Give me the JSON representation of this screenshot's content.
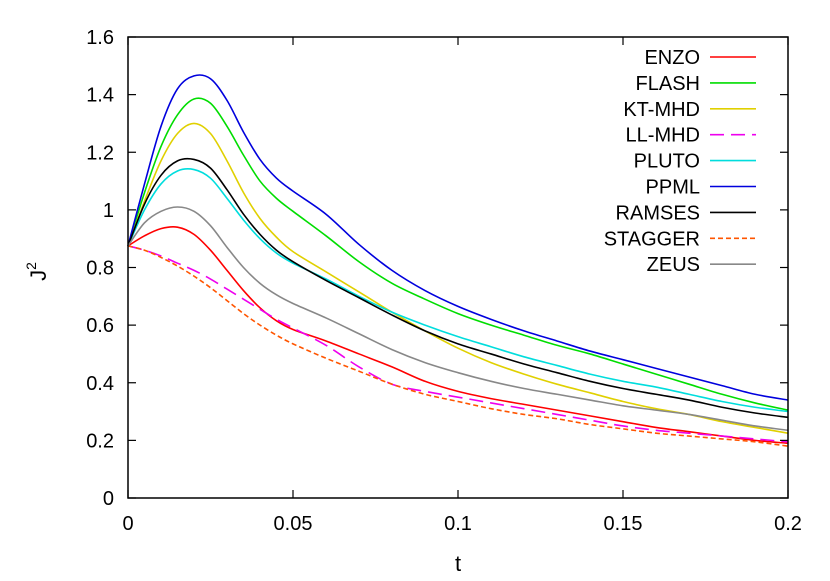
{
  "chart_data": {
    "type": "line",
    "xlabel": "t",
    "ylabel": "J",
    "ylabel_superscript": "2",
    "xlim": [
      0,
      0.2
    ],
    "ylim": [
      0,
      1.6
    ],
    "x_ticks": [
      "0",
      "0.05",
      "0.1",
      "0.15",
      "0.2"
    ],
    "y_ticks": [
      "0",
      "0.2",
      "0.4",
      "0.6",
      "0.8",
      "1",
      "1.2",
      "1.4",
      "1.6"
    ],
    "grid": false,
    "legend_position": "top-right",
    "series": [
      {
        "name": "ENZO",
        "color": "#ff0000",
        "dash": "solid",
        "x": [
          0,
          0.005,
          0.01,
          0.015,
          0.02,
          0.025,
          0.03,
          0.035,
          0.04,
          0.045,
          0.05,
          0.06,
          0.07,
          0.08,
          0.09,
          0.1,
          0.11,
          0.12,
          0.13,
          0.14,
          0.15,
          0.16,
          0.17,
          0.18,
          0.19,
          0.2
        ],
        "y": [
          0.875,
          0.91,
          0.935,
          0.94,
          0.915,
          0.86,
          0.79,
          0.72,
          0.66,
          0.615,
          0.585,
          0.545,
          0.5,
          0.455,
          0.405,
          0.37,
          0.345,
          0.325,
          0.305,
          0.285,
          0.265,
          0.245,
          0.23,
          0.215,
          0.2,
          0.19
        ]
      },
      {
        "name": "FLASH",
        "color": "#00dd00",
        "dash": "solid",
        "x": [
          0,
          0.005,
          0.01,
          0.015,
          0.02,
          0.025,
          0.03,
          0.035,
          0.04,
          0.045,
          0.05,
          0.06,
          0.07,
          0.08,
          0.09,
          0.1,
          0.11,
          0.12,
          0.13,
          0.14,
          0.15,
          0.16,
          0.17,
          0.18,
          0.19,
          0.2
        ],
        "y": [
          0.875,
          1.06,
          1.22,
          1.33,
          1.385,
          1.37,
          1.29,
          1.19,
          1.1,
          1.04,
          0.995,
          0.91,
          0.82,
          0.745,
          0.69,
          0.64,
          0.6,
          0.565,
          0.53,
          0.5,
          0.465,
          0.43,
          0.395,
          0.36,
          0.33,
          0.305
        ]
      },
      {
        "name": "KT-MHD",
        "color": "#e0d000",
        "dash": "solid",
        "x": [
          0,
          0.005,
          0.01,
          0.015,
          0.02,
          0.025,
          0.03,
          0.035,
          0.04,
          0.045,
          0.05,
          0.06,
          0.07,
          0.08,
          0.09,
          0.1,
          0.11,
          0.12,
          0.13,
          0.14,
          0.15,
          0.16,
          0.17,
          0.18,
          0.19,
          0.2
        ],
        "y": [
          0.875,
          1.03,
          1.17,
          1.265,
          1.3,
          1.265,
          1.17,
          1.06,
          0.97,
          0.905,
          0.855,
          0.785,
          0.715,
          0.645,
          0.58,
          0.52,
          0.47,
          0.43,
          0.395,
          0.365,
          0.335,
          0.31,
          0.29,
          0.265,
          0.245,
          0.225
        ]
      },
      {
        "name": "LL-MHD",
        "color": "#ee00ee",
        "dash": "long",
        "x": [
          0,
          0.005,
          0.01,
          0.015,
          0.02,
          0.025,
          0.03,
          0.035,
          0.04,
          0.045,
          0.05,
          0.06,
          0.07,
          0.08,
          0.09,
          0.1,
          0.11,
          0.12,
          0.13,
          0.14,
          0.15,
          0.16,
          0.17,
          0.18,
          0.19,
          0.2
        ],
        "y": [
          0.875,
          0.86,
          0.84,
          0.815,
          0.79,
          0.76,
          0.725,
          0.69,
          0.655,
          0.62,
          0.59,
          0.53,
          0.455,
          0.395,
          0.37,
          0.35,
          0.33,
          0.31,
          0.29,
          0.27,
          0.25,
          0.235,
          0.225,
          0.215,
          0.205,
          0.195
        ]
      },
      {
        "name": "PLUTO",
        "color": "#00dddd",
        "dash": "solid",
        "x": [
          0,
          0.005,
          0.01,
          0.015,
          0.02,
          0.025,
          0.03,
          0.035,
          0.04,
          0.045,
          0.05,
          0.06,
          0.07,
          0.08,
          0.09,
          0.1,
          0.11,
          0.12,
          0.13,
          0.14,
          0.15,
          0.16,
          0.17,
          0.18,
          0.19,
          0.2
        ],
        "y": [
          0.875,
          1.0,
          1.09,
          1.135,
          1.14,
          1.11,
          1.04,
          0.965,
          0.9,
          0.85,
          0.815,
          0.76,
          0.7,
          0.645,
          0.6,
          0.56,
          0.525,
          0.49,
          0.46,
          0.43,
          0.405,
          0.385,
          0.36,
          0.335,
          0.315,
          0.3
        ]
      },
      {
        "name": "PPML",
        "color": "#0000dd",
        "dash": "solid",
        "x": [
          0,
          0.005,
          0.01,
          0.015,
          0.02,
          0.025,
          0.03,
          0.035,
          0.04,
          0.045,
          0.05,
          0.06,
          0.07,
          0.08,
          0.09,
          0.1,
          0.11,
          0.12,
          0.13,
          0.14,
          0.15,
          0.16,
          0.17,
          0.18,
          0.19,
          0.2
        ],
        "y": [
          0.875,
          1.09,
          1.29,
          1.42,
          1.465,
          1.455,
          1.38,
          1.27,
          1.175,
          1.11,
          1.065,
          0.985,
          0.88,
          0.79,
          0.72,
          0.665,
          0.62,
          0.58,
          0.545,
          0.51,
          0.48,
          0.45,
          0.42,
          0.39,
          0.36,
          0.34
        ]
      },
      {
        "name": "RAMSES",
        "color": "#000000",
        "dash": "solid",
        "x": [
          0,
          0.005,
          0.01,
          0.015,
          0.02,
          0.025,
          0.03,
          0.035,
          0.04,
          0.045,
          0.05,
          0.06,
          0.07,
          0.08,
          0.09,
          0.1,
          0.11,
          0.12,
          0.13,
          0.14,
          0.15,
          0.16,
          0.17,
          0.18,
          0.19,
          0.2
        ],
        "y": [
          0.875,
          1.02,
          1.12,
          1.17,
          1.175,
          1.145,
          1.07,
          0.985,
          0.915,
          0.86,
          0.82,
          0.755,
          0.695,
          0.635,
          0.58,
          0.535,
          0.5,
          0.465,
          0.435,
          0.405,
          0.38,
          0.36,
          0.34,
          0.315,
          0.295,
          0.28
        ]
      },
      {
        "name": "STAGGER",
        "color": "#ff5500",
        "dash": "short",
        "x": [
          0,
          0.005,
          0.01,
          0.015,
          0.02,
          0.025,
          0.03,
          0.035,
          0.04,
          0.045,
          0.05,
          0.06,
          0.07,
          0.08,
          0.09,
          0.1,
          0.11,
          0.12,
          0.13,
          0.14,
          0.15,
          0.16,
          0.17,
          0.18,
          0.19,
          0.2
        ],
        "y": [
          0.875,
          0.86,
          0.835,
          0.805,
          0.77,
          0.73,
          0.685,
          0.64,
          0.6,
          0.565,
          0.535,
          0.485,
          0.44,
          0.395,
          0.36,
          0.335,
          0.31,
          0.29,
          0.275,
          0.255,
          0.24,
          0.225,
          0.215,
          0.205,
          0.195,
          0.18
        ]
      },
      {
        "name": "ZEUS",
        "color": "#888888",
        "dash": "solid",
        "x": [
          0,
          0.005,
          0.01,
          0.015,
          0.02,
          0.025,
          0.03,
          0.035,
          0.04,
          0.045,
          0.05,
          0.06,
          0.07,
          0.08,
          0.09,
          0.1,
          0.11,
          0.12,
          0.13,
          0.14,
          0.15,
          0.16,
          0.17,
          0.18,
          0.19,
          0.2
        ],
        "y": [
          0.875,
          0.955,
          0.995,
          1.01,
          0.995,
          0.945,
          0.87,
          0.8,
          0.745,
          0.705,
          0.675,
          0.625,
          0.57,
          0.515,
          0.47,
          0.435,
          0.405,
          0.38,
          0.36,
          0.34,
          0.32,
          0.305,
          0.29,
          0.27,
          0.25,
          0.235
        ]
      }
    ]
  }
}
